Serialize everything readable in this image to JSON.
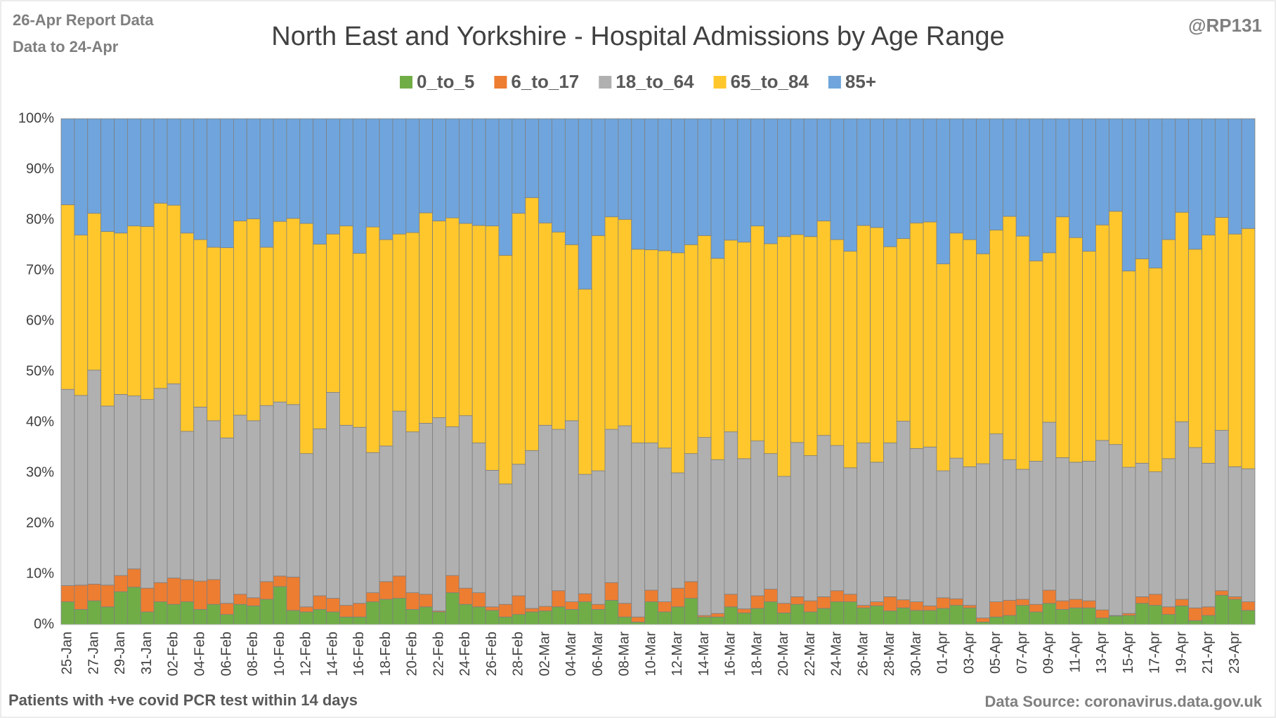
{
  "chart_data": {
    "type": "stacked_bar_percent",
    "title": "North East and Yorkshire - Hospital Admissions by Age Range",
    "corner_left": [
      "26-Apr Report Data",
      "Data to 24-Apr"
    ],
    "corner_right": "@RP131",
    "footnote": "Patients with  +ve covid PCR test within 14 days",
    "source": "Data Source: coronavirus.data.gov.uk",
    "legend": "top",
    "grid": true,
    "ylim": [
      0,
      100
    ],
    "yticks": [
      {
        "value": 0,
        "label": "0%"
      },
      {
        "value": 10,
        "label": "10%"
      },
      {
        "value": 20,
        "label": "20%"
      },
      {
        "value": 30,
        "label": "30%"
      },
      {
        "value": 40,
        "label": "40%"
      },
      {
        "value": 50,
        "label": "50%"
      },
      {
        "value": 60,
        "label": "60%"
      },
      {
        "value": 70,
        "label": "70%"
      },
      {
        "value": 80,
        "label": "80%"
      },
      {
        "value": 90,
        "label": "90%"
      },
      {
        "value": 100,
        "label": "100%"
      }
    ],
    "categories": [
      "25-Jan",
      null,
      "27-Jan",
      null,
      "29-Jan",
      null,
      "31-Jan",
      null,
      "02-Feb",
      null,
      "04-Feb",
      null,
      "06-Feb",
      null,
      "08-Feb",
      null,
      "10-Feb",
      null,
      "12-Feb",
      null,
      "14-Feb",
      null,
      "16-Feb",
      null,
      "18-Feb",
      null,
      "20-Feb",
      null,
      "22-Feb",
      null,
      "24-Feb",
      null,
      "26-Feb",
      null,
      "28-Feb",
      null,
      "02-Mar",
      null,
      "04-Mar",
      null,
      "06-Mar",
      null,
      "08-Mar",
      null,
      "10-Mar",
      null,
      "12-Mar",
      null,
      "14-Mar",
      null,
      "16-Mar",
      null,
      "18-Mar",
      null,
      "20-Mar",
      null,
      "22-Mar",
      null,
      "24-Mar",
      null,
      "26-Mar",
      null,
      "28-Mar",
      null,
      "30-Mar",
      null,
      "01-Apr",
      null,
      "03-Apr",
      null,
      "05-Apr",
      null,
      "07-Apr",
      null,
      "09-Apr",
      null,
      "11-Apr",
      null,
      "13-Apr",
      null,
      "15-Apr",
      null,
      "17-Apr",
      null,
      "19-Apr",
      null,
      "21-Apr",
      null,
      "23-Apr",
      null
    ],
    "series": [
      {
        "name": "0_to_5",
        "color": "#70ad47",
        "values": [
          4.5,
          3,
          4.7,
          3.5,
          6.5,
          7.4,
          2.5,
          4.5,
          4,
          4.5,
          3,
          4,
          2,
          4,
          3.7,
          5,
          7.5,
          2.8,
          2.5,
          3,
          2.5,
          1.5,
          1.5,
          4.5,
          5,
          5.2,
          3,
          3.5,
          2.5,
          6.3,
          4,
          3.5,
          2.8,
          1.5,
          2,
          2.5,
          2.7,
          3.5,
          3,
          4.5,
          3,
          4.8,
          1.5,
          0.5,
          4.5,
          2.5,
          3.5,
          5.2,
          1.5,
          1.5,
          3.5,
          2.3,
          3.2,
          4.5,
          2.3,
          4,
          2.5,
          3.2,
          4.5,
          4.5,
          3.3,
          3.7,
          2.7,
          3.3,
          2.8,
          2.8,
          3.2,
          3.8,
          3.3,
          0.5,
          1.5,
          1.8,
          3.8,
          2.5,
          4.2,
          3,
          3.3,
          3.3,
          1.3,
          1.7,
          1.8,
          4.2,
          3.8,
          2,
          3.7,
          0.8,
          1.8,
          5.8,
          5,
          2.8
        ]
      },
      {
        "name": "6_to_17",
        "color": "#ed7d31",
        "values": [
          3.2,
          4.8,
          3.3,
          4.3,
          3.2,
          3.6,
          4.7,
          3.8,
          5.2,
          4.4,
          5.6,
          4.9,
          2.2,
          2,
          1.6,
          3.5,
          2.1,
          6.6,
          1,
          2.7,
          2.7,
          2.3,
          2.7,
          1.8,
          3.5,
          4.4,
          3.3,
          2.5,
          0.2,
          3.4,
          3.2,
          2.8,
          0.7,
          2.5,
          3.7,
          0.7,
          0.9,
          3.2,
          1.5,
          1.6,
          1,
          3.5,
          2.7,
          1,
          2.3,
          2,
          3.7,
          3.3,
          0.3,
          0.7,
          2.5,
          0.8,
          2.5,
          2.5,
          1.9,
          1.5,
          2.2,
          2.3,
          2.2,
          1.5,
          0.5,
          0.8,
          2.8,
          1.6,
          1.7,
          0.9,
          2.1,
          1.3,
          0.5,
          0.8,
          3,
          3,
          1.2,
          1.5,
          2.6,
          1.7,
          1.7,
          1.4,
          1.6,
          0.1,
          0.4,
          1.3,
          2.2,
          1.5,
          1.3,
          2.5,
          1.7,
          0.9,
          0.5,
          1.7
        ]
      },
      {
        "name": "18_to_64",
        "color": "#b0b0b0",
        "values": [
          38.8,
          37.5,
          42.3,
          35.4,
          35.8,
          34.2,
          37.3,
          38.4,
          38.4,
          29.3,
          34.4,
          31.4,
          32.7,
          35.4,
          35,
          34.8,
          34.4,
          34.1,
          30.3,
          33,
          40.7,
          35.6,
          34.8,
          27.7,
          26.8,
          32.6,
          31.8,
          33.8,
          38.2,
          29.4,
          34.1,
          29.6,
          27,
          23.8,
          26,
          31.2,
          35.8,
          31.9,
          35.8,
          23.6,
          26.4,
          30.3,
          35.1,
          34.4,
          29.1,
          30.4,
          22.8,
          25.3,
          35.2,
          30.4,
          32.1,
          29.7,
          30.6,
          26.8,
          25.1,
          30.5,
          28.7,
          31.9,
          28.7,
          25,
          32.1,
          27.6,
          30.4,
          35.3,
          30.3,
          31.4,
          25.1,
          27.8,
          27.4,
          30.5,
          33.2,
          27.8,
          25.7,
          28.3,
          33.2,
          28.3,
          27.1,
          27.6,
          33.5,
          33.8,
          28.9,
          26.4,
          24.2,
          29.3,
          35.1,
          31.7,
          28.4,
          31.7,
          25.7,
          26.3
        ]
      },
      {
        "name": "65_to_84",
        "color": "#ffc72c",
        "values": [
          36.5,
          31.7,
          31,
          34.5,
          31.9,
          33.6,
          34.2,
          36.6,
          35.3,
          39.2,
          33.1,
          34.3,
          37.6,
          38.4,
          39.9,
          31.3,
          35.7,
          36.8,
          45.5,
          36.5,
          31.3,
          39.4,
          34.4,
          44.6,
          40.8,
          35,
          39.4,
          41.6,
          38.9,
          41.3,
          38,
          43,
          48.3,
          45.2,
          49.6,
          50,
          40,
          39,
          34.8,
          36.6,
          46.5,
          42,
          40.8,
          38.3,
          38.2,
          39,
          43.5,
          41.3,
          39.9,
          39.8,
          37.9,
          42.8,
          42.5,
          41.5,
          47.4,
          41.1,
          43.3,
          42.4,
          40.7,
          42.8,
          43,
          46.4,
          38.8,
          36.1,
          44.6,
          44.5,
          40.9,
          44.5,
          44.9,
          41.5,
          40.3,
          48.1,
          46.1,
          39.6,
          33.5,
          47.6,
          44.4,
          41.5,
          42.6,
          46.1,
          38.8,
          40.4,
          40.3,
          43.3,
          41.4,
          39.2,
          45.1,
          42.1,
          46,
          47.5
        ]
      },
      {
        "name": "85+",
        "color": "#6fa5dc",
        "values": [
          17,
          23,
          18.7,
          22.3,
          22.6,
          21.2,
          21.3,
          16.7,
          17.1,
          22.6,
          23.9,
          25.4,
          25.5,
          20.2,
          19.8,
          25.4,
          20.3,
          19.7,
          20.7,
          24.8,
          22.8,
          21.2,
          26.6,
          21.4,
          23.9,
          22.8,
          22.5,
          18.6,
          20.2,
          19.6,
          20.7,
          21.1,
          21.2,
          27,
          18.7,
          15.6,
          20.6,
          22.4,
          24.9,
          33.7,
          23.1,
          19.4,
          19.9,
          25.8,
          25.9,
          26.1,
          26.5,
          24.9,
          23.1,
          27.6,
          24,
          24.4,
          21.2,
          24.7,
          23.3,
          22.9,
          23.3,
          20.2,
          23.9,
          26.2,
          21.1,
          21.5,
          25.3,
          23.7,
          20.6,
          20.4,
          28.7,
          22.6,
          23.9,
          26.7,
          22,
          19.3,
          23.2,
          28.1,
          26.5,
          19.4,
          23.5,
          26.2,
          21,
          18.3,
          30.1,
          27.7,
          29.5,
          23.9,
          18.5,
          25.8,
          23,
          19.5,
          22.8,
          21.7
        ]
      }
    ]
  }
}
